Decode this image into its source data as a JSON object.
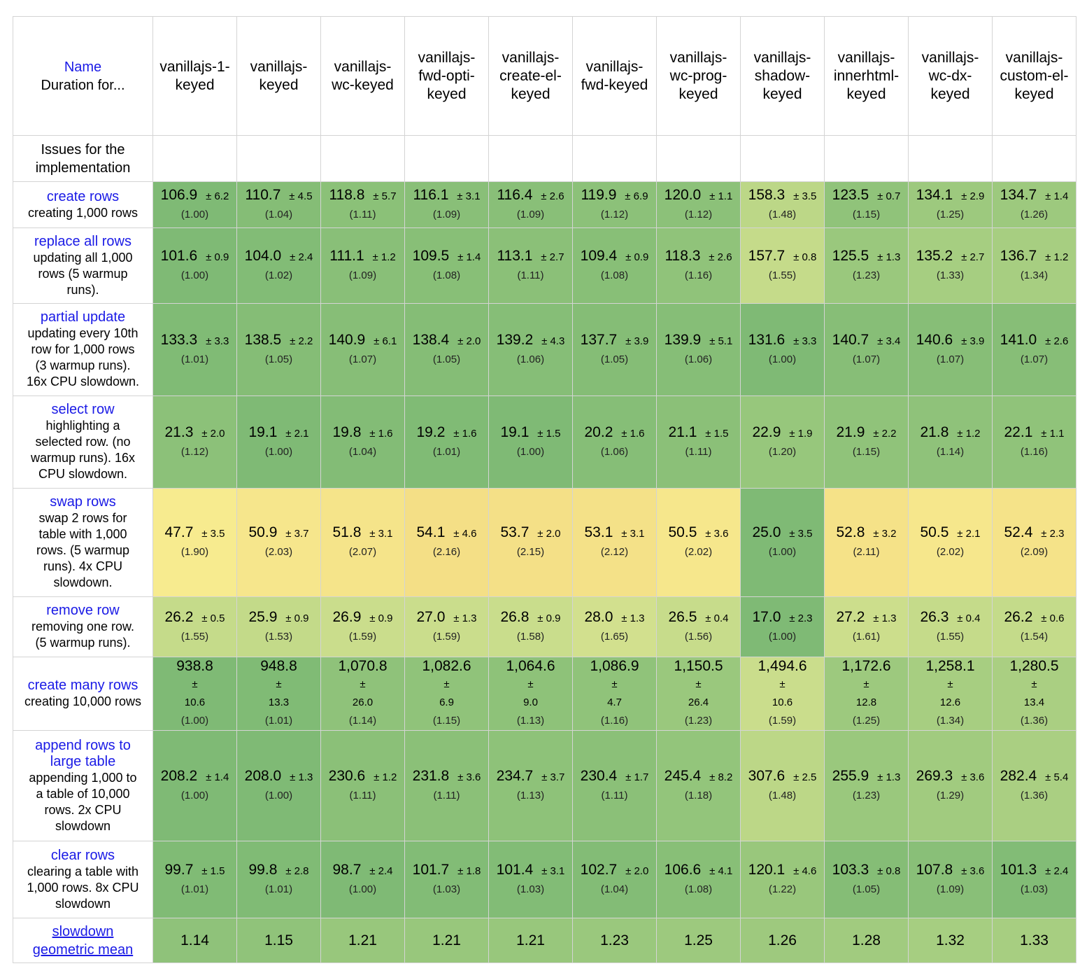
{
  "header": {
    "name_label": "Name",
    "duration_label": "Duration for...",
    "issues_label": "Issues for the implementation"
  },
  "frameworks": [
    {
      "line1": "vanillajs-1-",
      "line2": "keyed",
      "line3": ""
    },
    {
      "line1": "vanillajs-",
      "line2": "keyed",
      "line3": ""
    },
    {
      "line1": "vanillajs-",
      "line2": "wc-keyed",
      "line3": ""
    },
    {
      "line1": "vanillajs-",
      "line2": "fwd-opti-",
      "line3": "keyed"
    },
    {
      "line1": "vanillajs-",
      "line2": "create-el-",
      "line3": "keyed"
    },
    {
      "line1": "vanillajs-",
      "line2": "fwd-keyed",
      "line3": ""
    },
    {
      "line1": "vanillajs-",
      "line2": "wc-prog-",
      "line3": "keyed"
    },
    {
      "line1": "vanillajs-",
      "line2": "shadow-",
      "line3": "keyed"
    },
    {
      "line1": "vanillajs-",
      "line2": "innerhtml-",
      "line3": "keyed"
    },
    {
      "line1": "vanillajs-",
      "line2": "wc-dx-",
      "line3": "keyed"
    },
    {
      "line1": "vanillajs-",
      "line2": "custom-el-",
      "line3": "keyed"
    }
  ],
  "colors": {
    "dark_green": "#7fba75",
    "green": "#92c57c",
    "light_green": "#b4d585",
    "yellow_green": "#c9dd8c",
    "yellow": "#f7e98d",
    "orange_yellow": "#f4df86"
  },
  "rows": [
    {
      "title": "create rows",
      "desc": [
        "creating 1,000 rows"
      ],
      "height": 66,
      "cells": [
        {
          "v": "106.9",
          "d": "± 6.2",
          "r": "(1.00)",
          "c": "#7fba75"
        },
        {
          "v": "110.7",
          "d": "± 4.5",
          "r": "(1.04)",
          "c": "#85bd76"
        },
        {
          "v": "118.8",
          "d": "± 5.7",
          "r": "(1.11)",
          "c": "#8bc178"
        },
        {
          "v": "116.1",
          "d": "± 3.1",
          "r": "(1.09)",
          "c": "#89bf78"
        },
        {
          "v": "116.4",
          "d": "± 2.6",
          "r": "(1.09)",
          "c": "#89bf78"
        },
        {
          "v": "119.9",
          "d": "± 6.9",
          "r": "(1.12)",
          "c": "#8cc179"
        },
        {
          "v": "120.0",
          "d": "± 1.1",
          "r": "(1.12)",
          "c": "#8cc179"
        },
        {
          "v": "158.3",
          "d": "± 3.5",
          "r": "(1.48)",
          "c": "#bcd787"
        },
        {
          "v": "123.5",
          "d": "± 0.7",
          "r": "(1.15)",
          "c": "#90c37a"
        },
        {
          "v": "134.1",
          "d": "± 2.9",
          "r": "(1.25)",
          "c": "#9dc97e"
        },
        {
          "v": "134.7",
          "d": "± 1.4",
          "r": "(1.26)",
          "c": "#9dc97e"
        }
      ]
    },
    {
      "title": "replace all rows",
      "desc": [
        "updating all 1,000",
        "rows (5 warmup",
        "runs)."
      ],
      "height": 108,
      "cells": [
        {
          "v": "101.6",
          "d": "± 0.9",
          "r": "(1.00)",
          "c": "#7fba75"
        },
        {
          "v": "104.0",
          "d": "± 2.4",
          "r": "(1.02)",
          "c": "#82bc76"
        },
        {
          "v": "111.1",
          "d": "± 1.2",
          "r": "(1.09)",
          "c": "#89bf78"
        },
        {
          "v": "109.5",
          "d": "± 1.4",
          "r": "(1.08)",
          "c": "#88bf77"
        },
        {
          "v": "113.1",
          "d": "± 2.7",
          "r": "(1.11)",
          "c": "#8bc078"
        },
        {
          "v": "109.4",
          "d": "± 0.9",
          "r": "(1.08)",
          "c": "#88bf77"
        },
        {
          "v": "118.3",
          "d": "± 2.6",
          "r": "(1.16)",
          "c": "#90c37a"
        },
        {
          "v": "157.7",
          "d": "± 0.8",
          "r": "(1.55)",
          "c": "#c5db8a"
        },
        {
          "v": "125.5",
          "d": "± 1.3",
          "r": "(1.23)",
          "c": "#9ac87d"
        },
        {
          "v": "135.2",
          "d": "± 2.7",
          "r": "(1.33)",
          "c": "#a6ce81"
        },
        {
          "v": "136.7",
          "d": "± 1.2",
          "r": "(1.34)",
          "c": "#a7ce81"
        }
      ]
    },
    {
      "title": "partial update",
      "desc": [
        "updating every 10th",
        "row for 1,000 rows",
        "(3 warmup runs).",
        "16x CPU slowdown."
      ],
      "height": 132,
      "cells": [
        {
          "v": "133.3",
          "d": "± 3.3",
          "r": "(1.01)",
          "c": "#80bb75"
        },
        {
          "v": "138.5",
          "d": "± 2.2",
          "r": "(1.05)",
          "c": "#85bd76"
        },
        {
          "v": "140.9",
          "d": "± 6.1",
          "r": "(1.07)",
          "c": "#87be77"
        },
        {
          "v": "138.4",
          "d": "± 2.0",
          "r": "(1.05)",
          "c": "#85bd76"
        },
        {
          "v": "139.2",
          "d": "± 4.3",
          "r": "(1.06)",
          "c": "#86be77"
        },
        {
          "v": "137.7",
          "d": "± 3.9",
          "r": "(1.05)",
          "c": "#85bd76"
        },
        {
          "v": "139.9",
          "d": "± 5.1",
          "r": "(1.06)",
          "c": "#86be77"
        },
        {
          "v": "131.6",
          "d": "± 3.3",
          "r": "(1.00)",
          "c": "#7fba75"
        },
        {
          "v": "140.7",
          "d": "± 3.4",
          "r": "(1.07)",
          "c": "#87be77"
        },
        {
          "v": "140.6",
          "d": "± 3.9",
          "r": "(1.07)",
          "c": "#87be77"
        },
        {
          "v": "141.0",
          "d": "± 2.6",
          "r": "(1.07)",
          "c": "#87be77"
        }
      ]
    },
    {
      "title": "select row",
      "desc": [
        "highlighting a",
        "selected row. (no",
        "warmup runs). 16x",
        "CPU slowdown."
      ],
      "height": 132,
      "cells": [
        {
          "v": "21.3",
          "d": "± 2.0",
          "r": "(1.12)",
          "c": "#8cc179"
        },
        {
          "v": "19.1",
          "d": "± 2.1",
          "r": "(1.00)",
          "c": "#7fba75"
        },
        {
          "v": "19.8",
          "d": "± 1.6",
          "r": "(1.04)",
          "c": "#83bc76"
        },
        {
          "v": "19.2",
          "d": "± 1.6",
          "r": "(1.01)",
          "c": "#80bb75"
        },
        {
          "v": "19.1",
          "d": "± 1.5",
          "r": "(1.00)",
          "c": "#7fba75"
        },
        {
          "v": "20.2",
          "d": "± 1.6",
          "r": "(1.06)",
          "c": "#86be77"
        },
        {
          "v": "21.1",
          "d": "± 1.5",
          "r": "(1.11)",
          "c": "#8bc078"
        },
        {
          "v": "22.9",
          "d": "± 1.9",
          "r": "(1.20)",
          "c": "#97c77c"
        },
        {
          "v": "21.9",
          "d": "± 2.2",
          "r": "(1.15)",
          "c": "#90c37a"
        },
        {
          "v": "21.8",
          "d": "± 1.2",
          "r": "(1.14)",
          "c": "#8fc27a"
        },
        {
          "v": "22.1",
          "d": "± 1.1",
          "r": "(1.16)",
          "c": "#90c37a"
        }
      ]
    },
    {
      "title": "swap rows",
      "desc": [
        "swap 2 rows for",
        "table with 1,000",
        "rows. (5 warmup",
        "runs). 4x CPU",
        "slowdown."
      ],
      "height": 155,
      "cells": [
        {
          "v": "47.7",
          "d": "± 3.5",
          "r": "(1.90)",
          "c": "#f7eb8f"
        },
        {
          "v": "50.9",
          "d": "± 3.7",
          "r": "(2.03)",
          "c": "#f6e68c"
        },
        {
          "v": "51.8",
          "d": "± 3.1",
          "r": "(2.07)",
          "c": "#f5e48a"
        },
        {
          "v": "54.1",
          "d": "± 4.6",
          "r": "(2.16)",
          "c": "#f4df86"
        },
        {
          "v": "53.7",
          "d": "± 2.0",
          "r": "(2.15)",
          "c": "#f4e087"
        },
        {
          "v": "53.1",
          "d": "± 3.1",
          "r": "(2.12)",
          "c": "#f4e188"
        },
        {
          "v": "50.5",
          "d": "± 3.6",
          "r": "(2.02)",
          "c": "#f6e78c"
        },
        {
          "v": "25.0",
          "d": "± 3.5",
          "r": "(1.00)",
          "c": "#7fba75"
        },
        {
          "v": "52.8",
          "d": "± 3.2",
          "r": "(2.11)",
          "c": "#f5e288"
        },
        {
          "v": "50.5",
          "d": "± 2.1",
          "r": "(2.02)",
          "c": "#f6e78c"
        },
        {
          "v": "52.4",
          "d": "± 2.3",
          "r": "(2.09)",
          "c": "#f5e389"
        }
      ]
    },
    {
      "title": "remove row",
      "desc": [
        "removing one row.",
        "(5 warmup runs)."
      ],
      "height": 86,
      "cells": [
        {
          "v": "26.2",
          "d": "± 0.5",
          "r": "(1.55)",
          "c": "#c5db8a"
        },
        {
          "v": "25.9",
          "d": "± 0.9",
          "r": "(1.53)",
          "c": "#c3da89"
        },
        {
          "v": "26.9",
          "d": "± 0.9",
          "r": "(1.59)",
          "c": "#cadd8c"
        },
        {
          "v": "27.0",
          "d": "± 1.3",
          "r": "(1.59)",
          "c": "#cadd8c"
        },
        {
          "v": "26.8",
          "d": "± 0.9",
          "r": "(1.58)",
          "c": "#c9dd8c"
        },
        {
          "v": "28.0",
          "d": "± 1.3",
          "r": "(1.65)",
          "c": "#d2e08e"
        },
        {
          "v": "26.5",
          "d": "± 0.4",
          "r": "(1.56)",
          "c": "#c7dc8b"
        },
        {
          "v": "17.0",
          "d": "± 2.3",
          "r": "(1.00)",
          "c": "#7fba75"
        },
        {
          "v": "27.2",
          "d": "± 1.3",
          "r": "(1.61)",
          "c": "#ccde8c"
        },
        {
          "v": "26.3",
          "d": "± 0.4",
          "r": "(1.55)",
          "c": "#c5db8a"
        },
        {
          "v": "26.2",
          "d": "± 0.6",
          "r": "(1.54)",
          "c": "#c4db8a"
        }
      ]
    },
    {
      "title": "create many rows",
      "desc": [
        "creating 10,000 rows"
      ],
      "height": 92,
      "multiline": true,
      "cells": [
        {
          "v": "938.8",
          "d": "± 10.6",
          "r": "(1.00)",
          "c": "#7fba75"
        },
        {
          "v": "948.8",
          "d": "± 13.3",
          "r": "(1.01)",
          "c": "#80bb75"
        },
        {
          "v": "1,070.8",
          "d": "± 26.0",
          "r": "(1.14)",
          "c": "#8fc27a"
        },
        {
          "v": "1,082.6",
          "d": "± 6.9",
          "r": "(1.15)",
          "c": "#90c37a"
        },
        {
          "v": "1,064.6",
          "d": "± 9.0",
          "r": "(1.13)",
          "c": "#8ec279"
        },
        {
          "v": "1,086.9",
          "d": "± 4.7",
          "r": "(1.16)",
          "c": "#90c37a"
        },
        {
          "v": "1,150.5",
          "d": "± 26.4",
          "r": "(1.23)",
          "c": "#9ac87d"
        },
        {
          "v": "1,494.6",
          "d": "± 10.6",
          "r": "(1.59)",
          "c": "#cadd8c"
        },
        {
          "v": "1,172.6",
          "d": "± 12.8",
          "r": "(1.25)",
          "c": "#9dc97e"
        },
        {
          "v": "1,258.1",
          "d": "± 12.6",
          "r": "(1.34)",
          "c": "#a7ce81"
        },
        {
          "v": "1,280.5",
          "d": "± 13.4",
          "r": "(1.36)",
          "c": "#aacf82"
        }
      ]
    },
    {
      "title": "append rows to large table",
      "title_lines": [
        "append rows to",
        "large table"
      ],
      "desc": [
        "appending 1,000 to",
        "a table of 10,000",
        "rows. 2x CPU",
        "slowdown"
      ],
      "height": 158,
      "cells": [
        {
          "v": "208.2",
          "d": "± 1.4",
          "r": "(1.00)",
          "c": "#7fba75"
        },
        {
          "v": "208.0",
          "d": "± 1.3",
          "r": "(1.00)",
          "c": "#7fba75"
        },
        {
          "v": "230.6",
          "d": "± 1.2",
          "r": "(1.11)",
          "c": "#8bc078"
        },
        {
          "v": "231.8",
          "d": "± 3.6",
          "r": "(1.11)",
          "c": "#8bc078"
        },
        {
          "v": "234.7",
          "d": "± 3.7",
          "r": "(1.13)",
          "c": "#8ec279"
        },
        {
          "v": "230.4",
          "d": "± 1.7",
          "r": "(1.11)",
          "c": "#8bc078"
        },
        {
          "v": "245.4",
          "d": "± 8.2",
          "r": "(1.18)",
          "c": "#93c57b"
        },
        {
          "v": "307.6",
          "d": "± 2.5",
          "r": "(1.48)",
          "c": "#bcd787"
        },
        {
          "v": "255.9",
          "d": "± 1.3",
          "r": "(1.23)",
          "c": "#9ac87d"
        },
        {
          "v": "269.3",
          "d": "± 3.6",
          "r": "(1.29)",
          "c": "#a1cb7f"
        },
        {
          "v": "282.4",
          "d": "± 5.4",
          "r": "(1.36)",
          "c": "#aacf82"
        }
      ]
    },
    {
      "title": "clear rows",
      "desc": [
        "clearing a table with",
        "1,000 rows. 8x CPU",
        "slowdown"
      ],
      "height": 110,
      "cells": [
        {
          "v": "99.7",
          "d": "± 1.5",
          "r": "(1.01)",
          "c": "#80bb75"
        },
        {
          "v": "99.8",
          "d": "± 2.8",
          "r": "(1.01)",
          "c": "#80bb75"
        },
        {
          "v": "98.7",
          "d": "± 2.4",
          "r": "(1.00)",
          "c": "#7fba75"
        },
        {
          "v": "101.7",
          "d": "± 1.8",
          "r": "(1.03)",
          "c": "#82bc76"
        },
        {
          "v": "101.4",
          "d": "± 3.1",
          "r": "(1.03)",
          "c": "#82bc76"
        },
        {
          "v": "102.7",
          "d": "± 2.0",
          "r": "(1.04)",
          "c": "#83bc76"
        },
        {
          "v": "106.6",
          "d": "± 4.1",
          "r": "(1.08)",
          "c": "#88bf77"
        },
        {
          "v": "120.1",
          "d": "± 4.6",
          "r": "(1.22)",
          "c": "#99c77c"
        },
        {
          "v": "103.3",
          "d": "± 0.8",
          "r": "(1.05)",
          "c": "#85bd76"
        },
        {
          "v": "107.8",
          "d": "± 3.6",
          "r": "(1.09)",
          "c": "#89bf78"
        },
        {
          "v": "101.3",
          "d": "± 2.4",
          "r": "(1.03)",
          "c": "#82bc76"
        }
      ]
    }
  ],
  "mean_row": {
    "title_lines": [
      "slowdown",
      "geometric mean"
    ],
    "values": [
      "1.14",
      "1.15",
      "1.21",
      "1.21",
      "1.21",
      "1.23",
      "1.25",
      "1.26",
      "1.28",
      "1.32",
      "1.33"
    ],
    "colors": [
      "#8fc27a",
      "#90c37a",
      "#98c77c",
      "#98c77c",
      "#98c77c",
      "#9ac87d",
      "#9dc97e",
      "#9ec97e",
      "#a1cb7f",
      "#a6ce81",
      "#a7ce81"
    ]
  }
}
